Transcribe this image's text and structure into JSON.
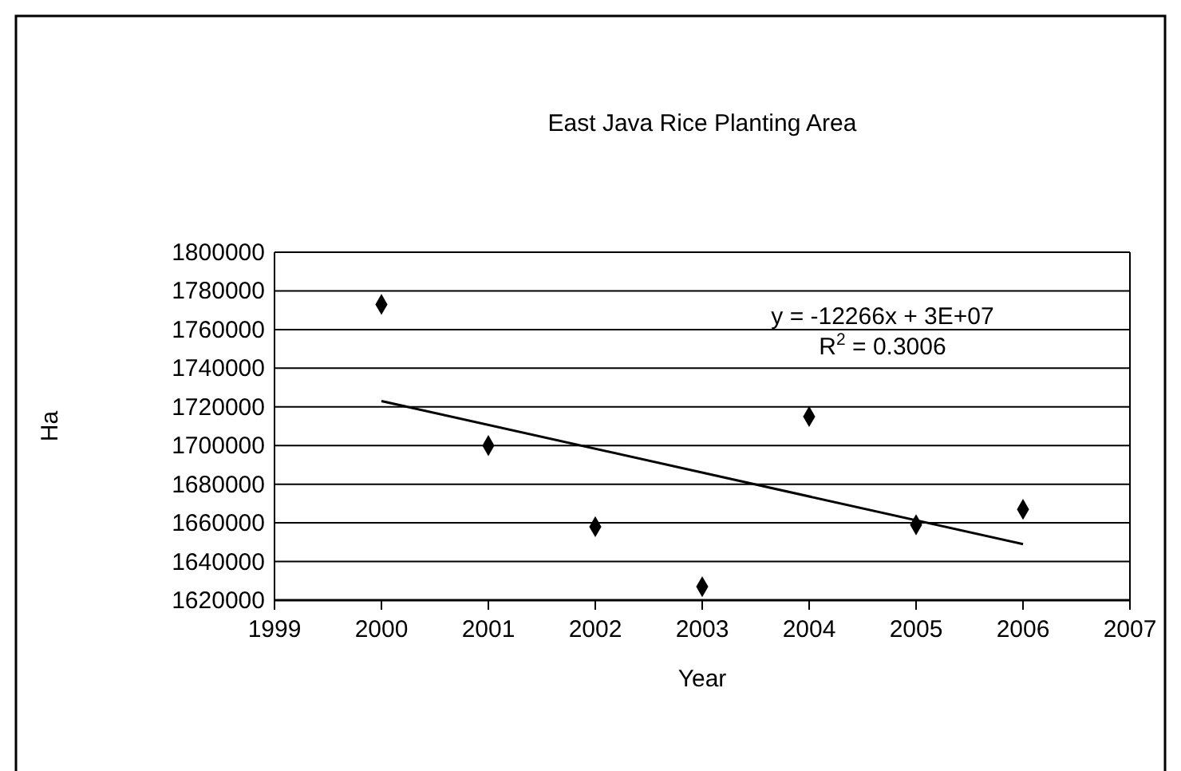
{
  "chart_data": {
    "type": "scatter",
    "title": "East Java Rice Planting Area",
    "xlabel": "Year",
    "ylabel": "Ha",
    "x": [
      2000,
      2001,
      2002,
      2003,
      2004,
      2005,
      2006
    ],
    "series": [
      {
        "color": "#000000",
        "values": [
          1773000,
          1700000,
          1658000,
          1627000,
          1715000,
          1659000,
          1667000
        ],
        "marker": "diamond"
      },
      {
        "type": "line",
        "color": "#000000",
        "x": [
          2000,
          2006
        ],
        "values": [
          1723000,
          1649000
        ],
        "marker": "none"
      }
    ],
    "xlim": [
      1999,
      2007
    ],
    "xticks": [
      1999,
      2000,
      2001,
      2002,
      2003,
      2004,
      2005,
      2006,
      2007
    ],
    "ylim": [
      1620000,
      1800000
    ],
    "yticks": [
      1620000,
      1640000,
      1660000,
      1680000,
      1700000,
      1720000,
      1740000,
      1760000,
      1780000,
      1800000
    ],
    "grid": "y",
    "annotations": [
      "y = -12266x + 3E+07",
      "R$^{2}$ = 0.3006"
    ]
  }
}
